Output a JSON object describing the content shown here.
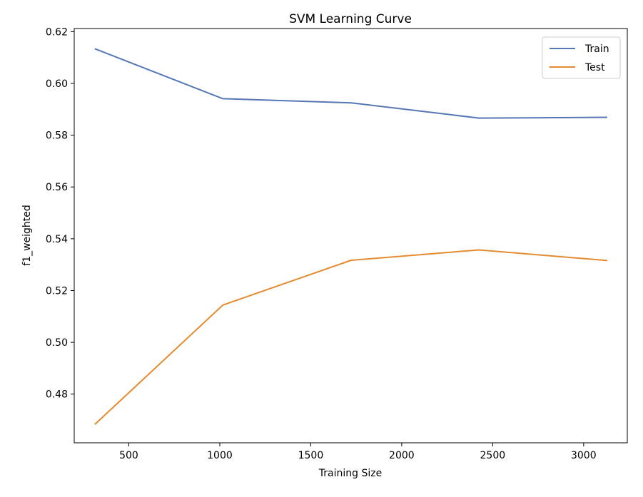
{
  "chart_data": {
    "type": "line",
    "title": "SVM Learning Curve",
    "xlabel": "Training Size",
    "ylabel": "f1_weighted",
    "x": [
      313,
      1017,
      1722,
      2425,
      3130
    ],
    "series": [
      {
        "name": "Train",
        "color": "#5577b5",
        "values": [
          0.6134,
          0.5941,
          0.5925,
          0.5866,
          0.5869
        ]
      },
      {
        "name": "Test",
        "color": "#e58b2f",
        "values": [
          0.4683,
          0.5144,
          0.5317,
          0.5357,
          0.5316
        ]
      }
    ],
    "xlim": [
      200,
      3240
    ],
    "ylim": [
      0.4612,
      0.6212
    ],
    "xticks": [
      500,
      1000,
      1500,
      2000,
      2500,
      3000
    ],
    "xtick_labels": [
      "500",
      "1000",
      "1500",
      "2000",
      "2500",
      "3000"
    ],
    "yticks": [
      0.48,
      0.5,
      0.52,
      0.54,
      0.56,
      0.58,
      0.6,
      0.62
    ],
    "ytick_labels": [
      "0.48",
      "0.50",
      "0.52",
      "0.54",
      "0.56",
      "0.58",
      "0.60",
      "0.62"
    ],
    "grid": false,
    "legend_position": "top-right"
  }
}
